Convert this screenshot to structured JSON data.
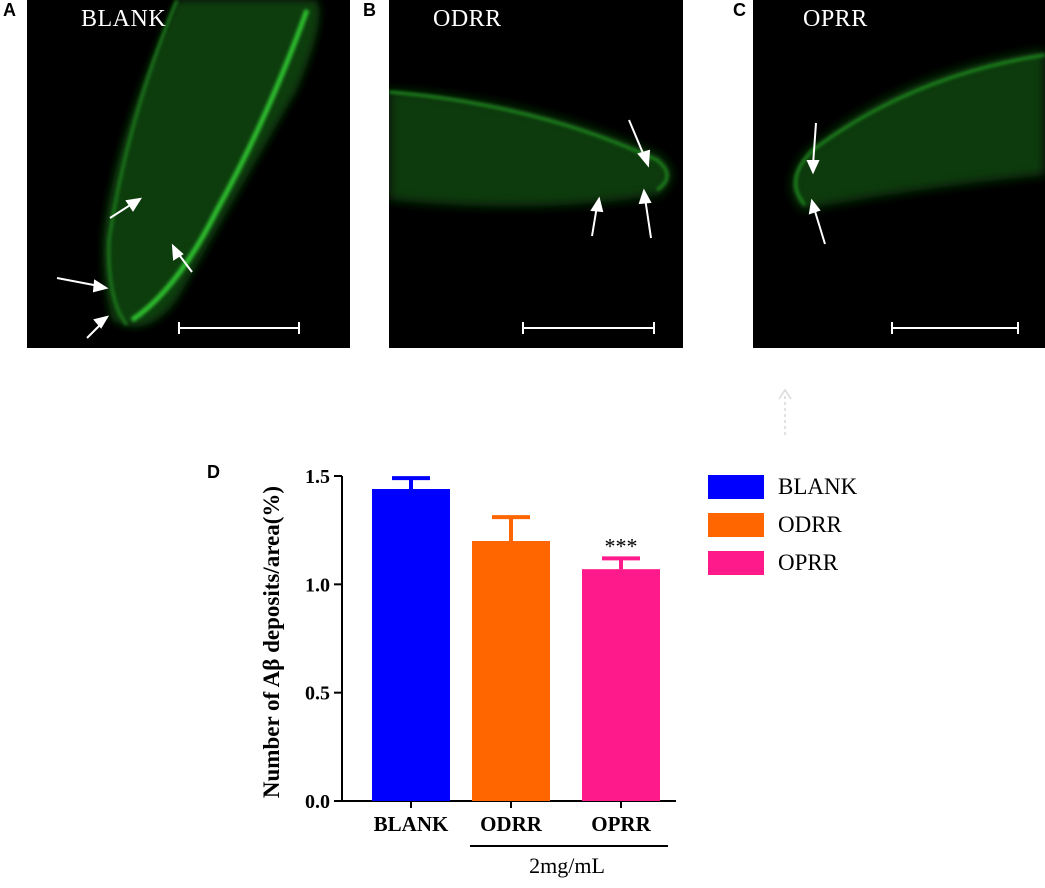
{
  "panels": [
    {
      "letter": "A",
      "label": "BLANK"
    },
    {
      "letter": "B",
      "label": "ODRR"
    },
    {
      "letter": "C",
      "label": "OPRR"
    }
  ],
  "chart_panel_letter": "D",
  "chart_data": {
    "type": "bar",
    "categories": [
      "BLANK",
      "ODRR",
      "OPRR"
    ],
    "values": [
      1.44,
      1.2,
      1.07
    ],
    "errors": [
      0.05,
      0.11,
      0.05
    ],
    "colors": [
      "#0000ff",
      "#ff6600",
      "#ff1a8c"
    ],
    "annotations": [
      "",
      "",
      "***"
    ],
    "ylabel": "Number of Aβ  deposits/area(%)",
    "ylim": [
      0,
      1.5
    ],
    "yticks": [
      "0.0",
      "0.5",
      "1.0",
      "1.5"
    ],
    "group_label": "2mg/mL",
    "legend": [
      "BLANK",
      "ODRR",
      "OPRR"
    ],
    "legend_position": "right"
  }
}
